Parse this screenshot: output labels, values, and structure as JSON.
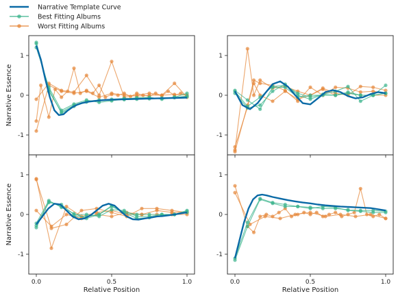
{
  "chart_data": {
    "type": "line",
    "legend": {
      "placement": "top-left",
      "entries": [
        {
          "name": "Narrative Template Curve",
          "color": "#0a6aa6"
        },
        {
          "name": "Best Fitting Albums",
          "color": "#3fb58e"
        },
        {
          "name": "Worst Fitting Albums",
          "color": "#e5883b"
        }
      ]
    },
    "xlabel": "Relative Position",
    "ylabel": "Narrative Essence",
    "xlim": [
      -0.05,
      1.05
    ],
    "ylim": [
      -1.5,
      1.5
    ],
    "xticks": [
      "0.0",
      "0.5",
      "1.0"
    ],
    "yticks": [
      "-1",
      "0",
      "1"
    ],
    "panels": [
      {
        "template": {
          "x": [
            0,
            0.03,
            0.06,
            0.09,
            0.12,
            0.15,
            0.18,
            0.21,
            0.24,
            0.27,
            0.3,
            0.35,
            0.4,
            0.45,
            0.5,
            0.6,
            0.7,
            0.8,
            0.9,
            1.0
          ],
          "y": [
            1.25,
            0.9,
            0.4,
            -0.05,
            -0.38,
            -0.5,
            -0.48,
            -0.38,
            -0.3,
            -0.24,
            -0.2,
            -0.16,
            -0.14,
            -0.12,
            -0.11,
            -0.1,
            -0.09,
            -0.08,
            -0.07,
            -0.06
          ]
        },
        "best": [
          {
            "x": [
              0,
              0.083,
              0.167,
              0.25,
              0.333,
              0.417,
              0.5,
              0.583,
              0.667,
              0.75,
              0.833,
              0.917,
              1.0
            ],
            "y": [
              1.3,
              0.1,
              -0.42,
              -0.25,
              -0.15,
              -0.12,
              -0.1,
              -0.08,
              -0.08,
              -0.07,
              -0.07,
              -0.05,
              -0.04
            ]
          },
          {
            "x": [
              0,
              0.083,
              0.167,
              0.25,
              0.333,
              0.417,
              0.5,
              0.583,
              0.667,
              0.75,
              0.833,
              0.917,
              1.0
            ],
            "y": [
              1.2,
              0.2,
              -0.38,
              -0.22,
              -0.12,
              -0.18,
              -0.14,
              -0.1,
              -0.06,
              -0.05,
              -0.1,
              -0.05,
              0.05
            ]
          },
          {
            "x": [
              0,
              0.083,
              0.167,
              0.25,
              0.333,
              0.417,
              0.5,
              0.583,
              0.667,
              0.75,
              0.833,
              0.917,
              1.0
            ],
            "y": [
              1.33,
              0.15,
              -0.45,
              -0.28,
              -0.17,
              -0.14,
              -0.12,
              -0.11,
              -0.1,
              -0.09,
              -0.08,
              -0.06,
              -0.02
            ]
          }
        ],
        "worst": [
          {
            "x": [
              0,
              0.083,
              0.167,
              0.25,
              0.333,
              0.417,
              0.5,
              0.583,
              0.667,
              0.75,
              0.833,
              0.917,
              1.0
            ],
            "y": [
              -0.1,
              0.3,
              0.12,
              0.08,
              0.5,
              0.0,
              0.85,
              -0.05,
              0.0,
              0.05,
              0.0,
              0.3,
              -0.05
            ]
          },
          {
            "x": [
              0,
              0.083,
              0.167,
              0.25,
              0.333,
              0.417,
              0.5,
              0.583,
              0.667,
              0.75,
              0.833,
              0.917,
              1.0
            ],
            "y": [
              -0.9,
              0.25,
              0.1,
              0.05,
              0.1,
              -0.05,
              0.05,
              0.0,
              -0.02,
              0.0,
              0.0,
              0.02,
              0.0
            ]
          },
          {
            "x": [
              0,
              0.03,
              0.083,
              0.125,
              0.167,
              0.208,
              0.25,
              0.292,
              0.333,
              0.375,
              0.417,
              0.458,
              0.5,
              0.542,
              0.583,
              0.625,
              0.667,
              0.708,
              0.75,
              0.792,
              0.833,
              0.875,
              0.917,
              0.958,
              1.0
            ],
            "y": [
              -0.65,
              0.25,
              -0.55,
              0.15,
              -0.05,
              0.1,
              0.68,
              0.05,
              0.12,
              0.05,
              0.25,
              -0.05,
              0.02,
              0.0,
              0.05,
              -0.03,
              0.05,
              0.0,
              -0.02,
              0.05,
              -0.01,
              0.1,
              0.0,
              0.05,
              0.0
            ]
          }
        ]
      },
      {
        "template": {
          "x": [
            0,
            0.05,
            0.1,
            0.15,
            0.2,
            0.25,
            0.3,
            0.35,
            0.4,
            0.45,
            0.5,
            0.55,
            0.6,
            0.65,
            0.7,
            0.75,
            0.8,
            0.85,
            0.9,
            0.95,
            1.0
          ],
          "y": [
            0.1,
            -0.25,
            -0.35,
            -0.2,
            0.05,
            0.28,
            0.35,
            0.22,
            0.0,
            -0.2,
            -0.23,
            -0.08,
            0.08,
            0.13,
            0.08,
            -0.02,
            -0.08,
            -0.05,
            0.03,
            0.08,
            0.05
          ]
        },
        "best": [
          {
            "x": [
              0,
              0.083,
              0.167,
              0.25,
              0.333,
              0.417,
              0.5,
              0.583,
              0.667,
              0.75,
              0.833,
              0.917,
              1.0
            ],
            "y": [
              0.1,
              -0.28,
              -0.05,
              0.22,
              0.25,
              0.05,
              -0.05,
              0.02,
              0.1,
              0.22,
              -0.15,
              0.0,
              0.25
            ]
          },
          {
            "x": [
              0,
              0.083,
              0.167,
              0.25,
              0.333,
              0.417,
              0.5,
              0.583,
              0.667,
              0.75,
              0.833,
              0.917,
              1.0
            ],
            "y": [
              0.12,
              -0.12,
              -0.35,
              0.2,
              0.2,
              -0.05,
              0.0,
              0.0,
              0.0,
              0.05,
              0.0,
              0.0,
              0.05
            ]
          },
          {
            "x": [
              0,
              0.083,
              0.167,
              0.25,
              0.333,
              0.417,
              0.5,
              0.583,
              0.667,
              0.75,
              0.833,
              0.917,
              1.0
            ],
            "y": [
              0.05,
              -0.32,
              -0.25,
              0.1,
              0.28,
              0.0,
              -0.1,
              0.02,
              0.0,
              0.08,
              0.0,
              0.0,
              0.05
            ]
          }
        ],
        "worst": [
          {
            "x": [
              0,
              0.083,
              0.125,
              0.167,
              0.25,
              0.333,
              0.417,
              0.5,
              0.583,
              0.667,
              0.75,
              0.833,
              0.917,
              1.0
            ],
            "y": [
              -1.38,
              1.17,
              0.0,
              0.38,
              0.18,
              0.22,
              0.1,
              0.0,
              0.18,
              0.05,
              0.0,
              0.22,
              0.2,
              0.12
            ]
          },
          {
            "x": [
              0,
              0.083,
              0.125,
              0.167,
              0.25,
              0.333,
              0.417,
              0.5,
              0.583,
              0.667,
              0.75,
              0.833,
              0.917,
              1.0
            ],
            "y": [
              -1.3,
              -0.3,
              0.3,
              0.0,
              -0.15,
              0.1,
              -0.1,
              0.0,
              0.15,
              0.0,
              0.05,
              0.0,
              0.0,
              0.0
            ]
          },
          {
            "x": [
              0,
              0.083,
              0.125,
              0.167,
              0.25,
              0.333,
              0.417,
              0.5,
              0.583,
              0.667,
              0.75,
              0.833,
              0.917,
              1.0
            ],
            "y": [
              -1.42,
              -0.25,
              0.38,
              0.3,
              0.25,
              0.12,
              -0.15,
              0.2,
              0.0,
              0.2,
              0.18,
              0.08,
              0.1,
              0.05
            ]
          }
        ]
      },
      {
        "template": {
          "x": [
            0,
            0.04,
            0.08,
            0.12,
            0.16,
            0.2,
            0.24,
            0.28,
            0.32,
            0.36,
            0.4,
            0.44,
            0.48,
            0.52,
            0.56,
            0.6,
            0.64,
            0.68,
            0.72,
            0.76,
            0.8,
            0.84,
            0.88,
            0.92,
            0.96,
            1.0
          ],
          "y": [
            -0.25,
            -0.05,
            0.15,
            0.27,
            0.25,
            0.1,
            -0.05,
            -0.12,
            -0.1,
            -0.02,
            0.1,
            0.22,
            0.27,
            0.22,
            0.08,
            -0.05,
            -0.12,
            -0.13,
            -0.1,
            -0.08,
            -0.05,
            -0.04,
            -0.02,
            0.0,
            0.03,
            0.05
          ]
        },
        "best": [
          {
            "x": [
              0,
              0.083,
              0.167,
              0.25,
              0.333,
              0.417,
              0.5,
              0.583,
              0.667,
              0.75,
              0.833,
              0.917,
              1.0
            ],
            "y": [
              -0.33,
              0.32,
              0.2,
              -0.05,
              -0.05,
              0.0,
              0.2,
              0.05,
              0.0,
              0.0,
              0.0,
              0.0,
              0.08
            ]
          },
          {
            "x": [
              0,
              0.083,
              0.167,
              0.25,
              0.333,
              0.417,
              0.5,
              0.583,
              0.667,
              0.75,
              0.833,
              0.917,
              1.0
            ],
            "y": [
              -0.28,
              0.3,
              0.25,
              0.0,
              0.0,
              -0.05,
              0.12,
              0.1,
              -0.05,
              -0.05,
              0.0,
              0.0,
              0.05
            ]
          },
          {
            "x": [
              0,
              0.083,
              0.167,
              0.25,
              0.333,
              0.417,
              0.5,
              0.583,
              0.667,
              0.75,
              0.833,
              0.917,
              1.0
            ],
            "y": [
              -0.22,
              0.35,
              0.18,
              0.02,
              -0.1,
              0.0,
              0.22,
              0.05,
              -0.1,
              -0.08,
              -0.02,
              0.0,
              0.1
            ]
          }
        ],
        "worst": [
          {
            "x": [
              0,
              0.1,
              0.2,
              0.3,
              0.4,
              0.5,
              0.6,
              0.7,
              0.8,
              0.9,
              1.0
            ],
            "y": [
              0.88,
              -0.35,
              -0.25,
              0.1,
              0.15,
              0.05,
              -0.05,
              0.15,
              0.15,
              0.1,
              0.05
            ]
          },
          {
            "x": [
              0,
              0.1,
              0.2,
              0.3,
              0.4,
              0.5,
              0.6,
              0.7,
              0.8,
              0.9,
              1.0
            ],
            "y": [
              0.9,
              -0.85,
              0.2,
              -0.05,
              0.05,
              0.1,
              0.0,
              0.0,
              0.0,
              0.0,
              0.0
            ]
          },
          {
            "x": [
              0,
              0.1,
              0.2,
              0.3,
              0.4,
              0.5,
              0.6,
              0.7,
              0.8,
              0.9,
              1.0
            ],
            "y": [
              0.1,
              -0.3,
              0.0,
              -0.1,
              0.0,
              -0.05,
              0.05,
              0.0,
              0.1,
              0.05,
              0.05
            ]
          }
        ]
      },
      {
        "template": {
          "x": [
            0,
            0.03,
            0.06,
            0.09,
            0.12,
            0.15,
            0.18,
            0.21,
            0.25,
            0.3,
            0.35,
            0.4,
            0.45,
            0.5,
            0.55,
            0.6,
            0.7,
            0.8,
            0.9,
            1.0
          ],
          "y": [
            -1.1,
            -0.65,
            -0.2,
            0.15,
            0.38,
            0.48,
            0.5,
            0.48,
            0.44,
            0.4,
            0.36,
            0.33,
            0.3,
            0.28,
            0.25,
            0.23,
            0.2,
            0.18,
            0.16,
            0.1
          ]
        },
        "best": [
          {
            "x": [
              0,
              0.083,
              0.167,
              0.25,
              0.333,
              0.417,
              0.5,
              0.583,
              0.667,
              0.75,
              0.833,
              0.917,
              1.0
            ],
            "y": [
              -1.1,
              -0.2,
              0.4,
              0.3,
              0.25,
              0.2,
              0.18,
              0.15,
              0.15,
              0.12,
              0.1,
              0.1,
              0.08
            ]
          },
          {
            "x": [
              0,
              0.083,
              0.167,
              0.25,
              0.333,
              0.417,
              0.5,
              0.583,
              0.667,
              0.75,
              0.833,
              0.917,
              1.0
            ],
            "y": [
              -1.15,
              -0.3,
              0.38,
              0.28,
              0.2,
              0.2,
              0.15,
              0.2,
              0.18,
              0.1,
              0.08,
              0.05,
              0.05
            ]
          }
        ],
        "worst": [
          {
            "x": [
              0,
              0.083,
              0.125,
              0.167,
              0.208,
              0.25,
              0.292,
              0.333,
              0.375,
              0.417,
              0.458,
              0.5,
              0.542,
              0.583,
              0.625,
              0.667,
              0.708,
              0.75,
              0.792,
              0.833,
              0.875,
              0.917,
              0.958,
              1.0
            ],
            "y": [
              0.72,
              -0.3,
              -0.45,
              -0.05,
              0.0,
              -0.05,
              0.05,
              0.15,
              -0.05,
              0.0,
              0.05,
              0.0,
              0.05,
              -0.05,
              0.0,
              0.05,
              -0.05,
              0.0,
              0.05,
              0.65,
              0.0,
              -0.05,
              0.0,
              -0.1
            ]
          },
          {
            "x": [
              0,
              0.1,
              0.2,
              0.3,
              0.4,
              0.5,
              0.6,
              0.7,
              0.8,
              0.9,
              1.0
            ],
            "y": [
              0.55,
              -0.25,
              -0.05,
              -0.1,
              0.0,
              0.05,
              -0.05,
              0.0,
              -0.05,
              0.0,
              -0.1
            ]
          }
        ]
      }
    ]
  }
}
